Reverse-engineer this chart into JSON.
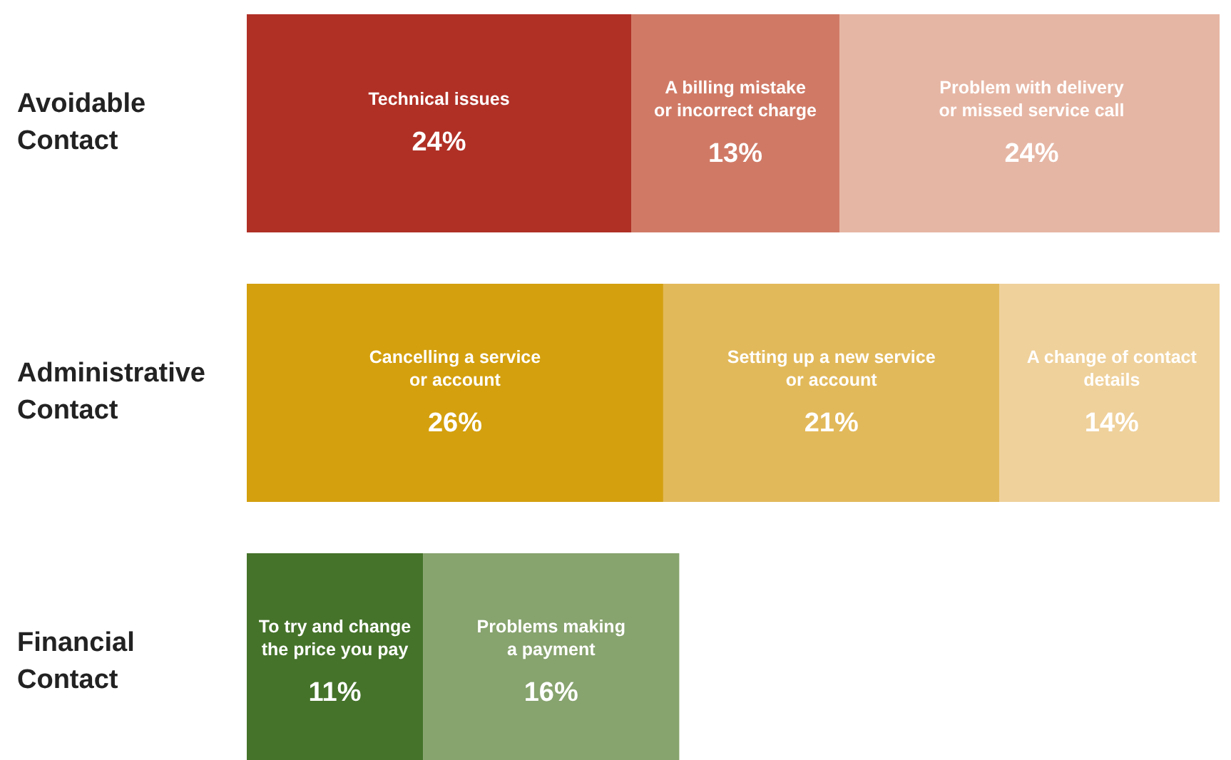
{
  "chart_data": {
    "type": "bar",
    "orientation": "horizontal",
    "stacked": true,
    "categories": [
      "Avoidable Contact",
      "Administrative Contact",
      "Financial Contact"
    ],
    "series": [
      {
        "name": "Technical issues",
        "color": "#b03026",
        "values": [
          24,
          null,
          null
        ],
        "value_labels": [
          "24%",
          null,
          null
        ]
      },
      {
        "name": "A billing mistake\nor incorrect charge",
        "color": "#d07a66",
        "values": [
          13,
          null,
          null
        ],
        "value_labels": [
          "13%",
          null,
          null
        ]
      },
      {
        "name": "Problem with delivery\nor missed service call",
        "color": "#e6b6a4",
        "values": [
          24,
          null,
          null
        ],
        "value_labels": [
          "24%",
          null,
          null
        ]
      },
      {
        "name": "Cancelling a service\nor account",
        "color": "#d4a00e",
        "values": [
          null,
          26,
          null
        ],
        "value_labels": [
          null,
          "26%",
          null
        ]
      },
      {
        "name": "Setting up a new service\nor account",
        "color": "#e2b95a",
        "values": [
          null,
          21,
          null
        ],
        "value_labels": [
          null,
          "21%",
          null
        ]
      },
      {
        "name": "A change of contact\ndetails",
        "color": "#efd19b",
        "values": [
          null,
          14,
          null
        ],
        "value_labels": [
          null,
          "14%",
          null
        ]
      },
      {
        "name": "To try and change\nthe price you pay",
        "color": "#45732a",
        "values": [
          null,
          null,
          11
        ],
        "value_labels": [
          null,
          null,
          "11%"
        ]
      },
      {
        "name": "Problems making\na payment",
        "color": "#87a36e",
        "values": [
          null,
          null,
          16
        ],
        "value_labels": [
          null,
          null,
          "16%"
        ]
      }
    ]
  }
}
